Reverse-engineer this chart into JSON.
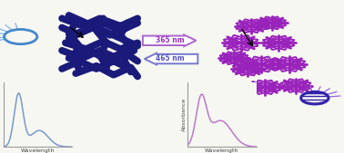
{
  "bg_color": "#f7f7f2",
  "left_curve_color": "#7799cc",
  "right_curve_color": "#bb77cc",
  "arrow_top_color": "#aa66cc",
  "arrow_bottom_color": "#7777cc",
  "worm_color": "#1a1a7a",
  "crystal_color": "#9922bb",
  "sphere_left_color": "#4488cc",
  "sphere_right_color": "#3322aa",
  "ray_left_color": "#88bbee",
  "ray_right_color": "#9966dd",
  "text_365": "365 nm",
  "text_465": "465 nm",
  "xlabel": "Wavelength",
  "ylabel": "Absorbance"
}
